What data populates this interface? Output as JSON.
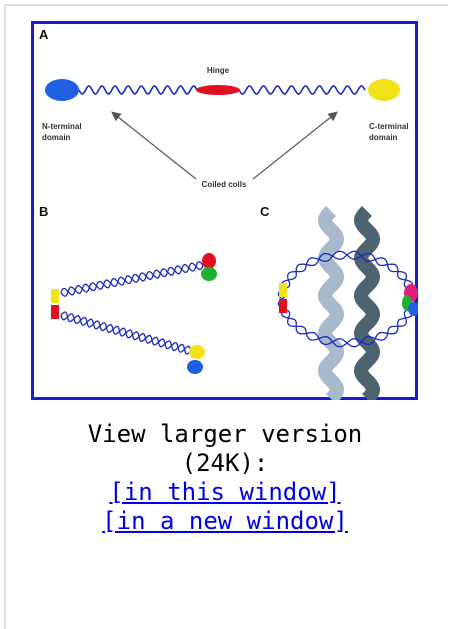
{
  "figure": {
    "panel_a": {
      "label": "A",
      "hinge": "Hinge",
      "n_terminal": [
        "N-terminal",
        "domain"
      ],
      "c_terminal": [
        "C-terminal",
        "domain"
      ],
      "coiled_coils": "Coiled coils"
    },
    "panel_b": {
      "label": "B"
    },
    "panel_c": {
      "label": "C"
    }
  },
  "caption": {
    "line1": "View larger version",
    "line2": "(24K):"
  },
  "links": [
    "[in this window]",
    "[in a new window]"
  ]
}
